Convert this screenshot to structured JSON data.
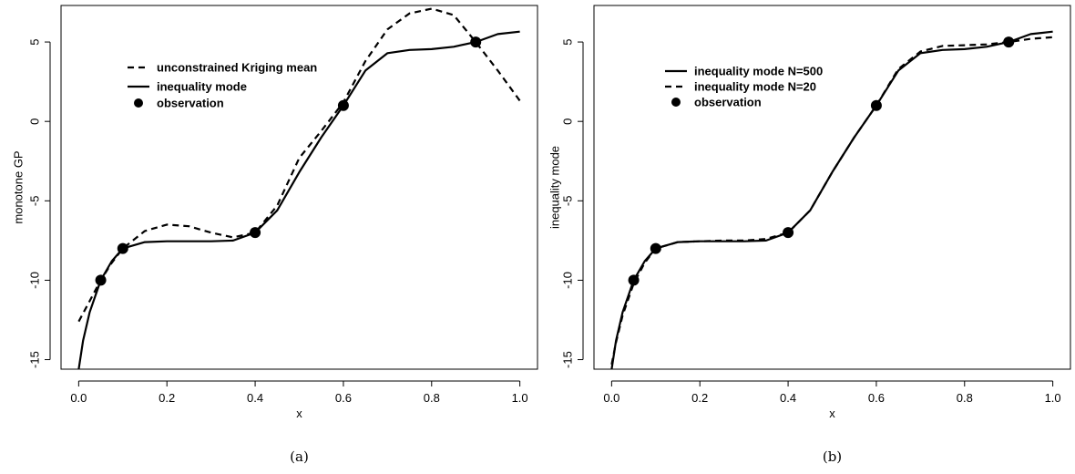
{
  "chart_data": [
    {
      "type": "line",
      "caption": "(a)",
      "xlabel": "x",
      "ylabel": "monotone GP",
      "xlim": [
        0,
        1
      ],
      "ylim": [
        -15.6,
        7.3
      ],
      "xticks": [
        "0.0",
        "0.2",
        "0.4",
        "0.6",
        "0.8",
        "1.0"
      ],
      "yticks": [
        "-15",
        "-10",
        "-5",
        "0",
        "5"
      ],
      "legend_position": "top-left",
      "series": [
        {
          "name": "unconstrained Kriging mean",
          "style": "dashed",
          "x": [
            0.0,
            0.025,
            0.05,
            0.075,
            0.1,
            0.15,
            0.2,
            0.25,
            0.3,
            0.35,
            0.4,
            0.45,
            0.5,
            0.55,
            0.6,
            0.65,
            0.7,
            0.75,
            0.8,
            0.85,
            0.9,
            0.95,
            1.0
          ],
          "y": [
            -12.6,
            -11.3,
            -10.0,
            -8.9,
            -8.0,
            -6.9,
            -6.5,
            -6.6,
            -7.0,
            -7.3,
            -7.0,
            -5.3,
            -2.3,
            -0.6,
            1.2,
            3.8,
            5.8,
            6.8,
            7.1,
            6.7,
            5.0,
            3.2,
            1.3
          ]
        },
        {
          "name": "inequality mode",
          "style": "solid",
          "x": [
            0.0,
            0.01,
            0.025,
            0.05,
            0.075,
            0.1,
            0.15,
            0.2,
            0.25,
            0.3,
            0.35,
            0.4,
            0.45,
            0.5,
            0.55,
            0.6,
            0.65,
            0.7,
            0.75,
            0.8,
            0.85,
            0.9,
            0.95,
            1.0
          ],
          "y": [
            -15.6,
            -13.8,
            -12.0,
            -10.0,
            -8.8,
            -8.0,
            -7.6,
            -7.55,
            -7.55,
            -7.55,
            -7.5,
            -7.0,
            -5.6,
            -3.2,
            -1.0,
            1.0,
            3.2,
            4.3,
            4.5,
            4.55,
            4.7,
            5.0,
            5.5,
            5.65
          ]
        }
      ],
      "observations": {
        "name": "observation",
        "x": [
          0.05,
          0.1,
          0.4,
          0.6,
          0.9
        ],
        "y": [
          -10,
          -8,
          -7,
          1,
          5
        ]
      }
    },
    {
      "type": "line",
      "caption": "(b)",
      "xlabel": "x",
      "ylabel": "inequality mode",
      "xlim": [
        0,
        1
      ],
      "ylim": [
        -15.6,
        7.3
      ],
      "xticks": [
        "0.0",
        "0.2",
        "0.4",
        "0.6",
        "0.8",
        "1.0"
      ],
      "yticks": [
        "-15",
        "-10",
        "-5",
        "0",
        "5"
      ],
      "legend_position": "top-left",
      "series": [
        {
          "name": "inequality mode N=500",
          "style": "solid",
          "x": [
            0.0,
            0.01,
            0.025,
            0.05,
            0.075,
            0.1,
            0.15,
            0.2,
            0.25,
            0.3,
            0.35,
            0.4,
            0.45,
            0.5,
            0.55,
            0.6,
            0.65,
            0.7,
            0.75,
            0.8,
            0.85,
            0.9,
            0.95,
            1.0
          ],
          "y": [
            -15.6,
            -13.8,
            -12.0,
            -10.0,
            -8.8,
            -8.0,
            -7.6,
            -7.55,
            -7.55,
            -7.55,
            -7.5,
            -7.0,
            -5.6,
            -3.2,
            -1.0,
            1.0,
            3.2,
            4.3,
            4.5,
            4.55,
            4.7,
            5.0,
            5.5,
            5.65
          ]
        },
        {
          "name": "inequality mode N=20",
          "style": "dashed",
          "x": [
            0.0,
            0.01,
            0.025,
            0.05,
            0.075,
            0.1,
            0.15,
            0.2,
            0.25,
            0.3,
            0.35,
            0.4,
            0.45,
            0.5,
            0.55,
            0.6,
            0.65,
            0.7,
            0.75,
            0.8,
            0.85,
            0.9,
            0.95,
            1.0
          ],
          "y": [
            -15.3,
            -13.9,
            -12.2,
            -10.2,
            -8.9,
            -8.0,
            -7.6,
            -7.55,
            -7.5,
            -7.5,
            -7.4,
            -7.0,
            -5.6,
            -3.2,
            -1.0,
            1.0,
            3.3,
            4.4,
            4.75,
            4.8,
            4.85,
            5.0,
            5.2,
            5.3
          ]
        }
      ],
      "observations": {
        "name": "observation",
        "x": [
          0.05,
          0.1,
          0.4,
          0.6,
          0.9
        ],
        "y": [
          -10,
          -8,
          -7,
          1,
          5
        ]
      }
    }
  ]
}
